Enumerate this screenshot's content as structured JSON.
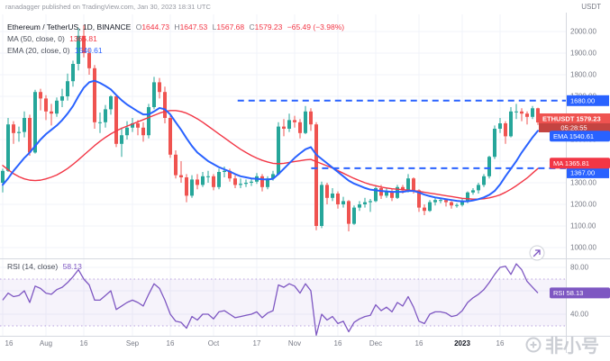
{
  "header": {
    "attribution": "ranadagger published on TradingView.com, Jan 30, 2023 18:31 UTC",
    "currency_label": "USDT"
  },
  "legend": {
    "symbol": "Ethereum / TetherUS, 1D, BINANCE",
    "ohlc": {
      "o_label": "O",
      "o": "1644.73",
      "h_label": "H",
      "h": "1647.53",
      "l_label": "L",
      "l": "1567.68",
      "c_label": "C",
      "c": "1579.23",
      "change": "−65.49 (−3.98%)"
    },
    "ma": {
      "label": "MA (50, close, 0)",
      "value": "1365.81"
    },
    "ema": {
      "label": "EMA (20, close, 0)",
      "value": "1540.61"
    },
    "rsi": {
      "label": "RSI (14, close)",
      "value": "58.13"
    }
  },
  "price_axis": {
    "y_ticks": [
      "2000.00",
      "1900.00",
      "1800.00",
      "1700.00",
      "1600.00",
      "1500.00",
      "1400.00",
      "1300.00",
      "1200.00",
      "1100.00",
      "1000.00"
    ],
    "last": {
      "symbol": "ETHUSDT",
      "price": "1579.23",
      "countdown": "05:28:55"
    },
    "ema_badge": {
      "label": "EMA",
      "value": "1540.61"
    },
    "ma_badge": {
      "label": "MA",
      "value": "1365.81"
    }
  },
  "rsi_axis": {
    "y_ticks": [
      "80.00",
      "60.00",
      "40.00"
    ],
    "badge": {
      "label": "RSI",
      "value": "58.13"
    }
  },
  "time_axis": {
    "labels": [
      {
        "t": "16",
        "i": 0
      },
      {
        "t": "Aug",
        "i": 8
      },
      {
        "t": "16",
        "i": 15
      },
      {
        "t": "Sep",
        "i": 24
      },
      {
        "t": "16",
        "i": 31
      },
      {
        "t": "Oct",
        "i": 39
      },
      {
        "t": "17",
        "i": 47
      },
      {
        "t": "Nov",
        "i": 54
      },
      {
        "t": "16",
        "i": 62
      },
      {
        "t": "Dec",
        "i": 69
      },
      {
        "t": "16",
        "i": 77
      },
      {
        "t": "2023",
        "i": 85,
        "bold": true
      },
      {
        "t": "16",
        "i": 92
      }
    ]
  },
  "watermark": {
    "text": "非小号"
  },
  "colors": {
    "up": "#26a69a",
    "down": "#ef5350",
    "ema": "#2962ff",
    "ma": "#f23645",
    "rsi": "#7e57c2",
    "level": "#2962ff",
    "axis_text": "#787b86",
    "grid": "#f0f3fa"
  },
  "chart_data": [
    {
      "type": "candlestick",
      "title": "Ethereum / TetherUS, 1D, BINANCE",
      "x_start": "2022-07-16",
      "x_step_days": 2,
      "ylim": [
        950,
        2060
      ],
      "y_ticks": [
        "2000.00",
        "1900.00",
        "1800.00",
        "1700.00",
        "1600.00",
        "1500.00",
        "1400.00",
        "1300.00",
        "1200.00",
        "1100.00",
        "1000.00"
      ],
      "candles": [
        [
          1300,
          1365,
          1255,
          1355
        ],
        [
          1355,
          1600,
          1350,
          1570
        ],
        [
          1570,
          1585,
          1480,
          1530
        ],
        [
          1530,
          1560,
          1490,
          1535
        ],
        [
          1535,
          1630,
          1510,
          1600
        ],
        [
          1600,
          1615,
          1425,
          1440
        ],
        [
          1440,
          1730,
          1435,
          1720
        ],
        [
          1720,
          1735,
          1635,
          1690
        ],
        [
          1690,
          1705,
          1590,
          1630
        ],
        [
          1630,
          1665,
          1565,
          1620
        ],
        [
          1620,
          1695,
          1605,
          1680
        ],
        [
          1680,
          1735,
          1650,
          1700
        ],
        [
          1700,
          1805,
          1680,
          1770
        ],
        [
          1770,
          1865,
          1745,
          1850
        ],
        [
          1850,
          2015,
          1820,
          1980
        ],
        [
          1980,
          2030,
          1880,
          1900
        ],
        [
          1900,
          1920,
          1800,
          1830
        ],
        [
          1830,
          1845,
          1550,
          1580
        ],
        [
          1580,
          1625,
          1530,
          1580
        ],
        [
          1580,
          1660,
          1555,
          1640
        ],
        [
          1640,
          1705,
          1615,
          1700
        ],
        [
          1700,
          1710,
          1465,
          1480
        ],
        [
          1480,
          1555,
          1420,
          1520
        ],
        [
          1520,
          1585,
          1500,
          1555
        ],
        [
          1555,
          1600,
          1535,
          1575
        ],
        [
          1575,
          1590,
          1520,
          1555
        ],
        [
          1555,
          1580,
          1490,
          1520
        ],
        [
          1520,
          1665,
          1505,
          1650
        ],
        [
          1650,
          1790,
          1640,
          1765
        ],
        [
          1765,
          1785,
          1690,
          1720
        ],
        [
          1720,
          1745,
          1575,
          1600
        ],
        [
          1600,
          1615,
          1415,
          1430
        ],
        [
          1430,
          1450,
          1320,
          1335
        ],
        [
          1335,
          1400,
          1300,
          1325
        ],
        [
          1325,
          1340,
          1210,
          1240
        ],
        [
          1240,
          1335,
          1230,
          1315
        ],
        [
          1315,
          1340,
          1270,
          1290
        ],
        [
          1290,
          1350,
          1280,
          1330
        ],
        [
          1330,
          1355,
          1300,
          1330
        ],
        [
          1330,
          1340,
          1265,
          1280
        ],
        [
          1280,
          1365,
          1270,
          1350
        ],
        [
          1350,
          1375,
          1325,
          1355
        ],
        [
          1355,
          1365,
          1305,
          1320
        ],
        [
          1320,
          1335,
          1275,
          1290
        ],
        [
          1290,
          1320,
          1275,
          1295
        ],
        [
          1295,
          1315,
          1280,
          1300
        ],
        [
          1300,
          1320,
          1285,
          1305
        ],
        [
          1305,
          1345,
          1295,
          1330
        ],
        [
          1330,
          1340,
          1260,
          1280
        ],
        [
          1280,
          1330,
          1270,
          1320
        ],
        [
          1320,
          1355,
          1310,
          1340
        ],
        [
          1340,
          1580,
          1335,
          1560
        ],
        [
          1560,
          1595,
          1515,
          1550
        ],
        [
          1550,
          1620,
          1535,
          1590
        ],
        [
          1590,
          1610,
          1555,
          1580
        ],
        [
          1580,
          1595,
          1505,
          1530
        ],
        [
          1530,
          1655,
          1525,
          1630
        ],
        [
          1630,
          1645,
          1540,
          1570
        ],
        [
          1570,
          1580,
          1080,
          1100
        ],
        [
          1100,
          1305,
          1090,
          1290
        ],
        [
          1290,
          1300,
          1200,
          1230
        ],
        [
          1230,
          1275,
          1215,
          1250
        ],
        [
          1250,
          1260,
          1180,
          1200
        ],
        [
          1200,
          1235,
          1185,
          1215
        ],
        [
          1215,
          1220,
          1075,
          1110
        ],
        [
          1110,
          1195,
          1105,
          1185
        ],
        [
          1185,
          1215,
          1170,
          1200
        ],
        [
          1200,
          1230,
          1185,
          1210
        ],
        [
          1210,
          1225,
          1165,
          1215
        ],
        [
          1215,
          1285,
          1210,
          1275
        ],
        [
          1275,
          1290,
          1225,
          1240
        ],
        [
          1240,
          1275,
          1230,
          1260
        ],
        [
          1260,
          1270,
          1215,
          1230
        ],
        [
          1230,
          1290,
          1225,
          1280
        ],
        [
          1280,
          1290,
          1250,
          1265
        ],
        [
          1265,
          1340,
          1255,
          1320
        ],
        [
          1320,
          1325,
          1250,
          1265
        ],
        [
          1265,
          1270,
          1165,
          1185
        ],
        [
          1185,
          1200,
          1150,
          1170
        ],
        [
          1170,
          1220,
          1165,
          1210
        ],
        [
          1210,
          1230,
          1195,
          1220
        ],
        [
          1220,
          1230,
          1205,
          1220
        ],
        [
          1220,
          1225,
          1190,
          1210
        ],
        [
          1210,
          1215,
          1180,
          1195
        ],
        [
          1195,
          1205,
          1185,
          1197
        ],
        [
          1197,
          1225,
          1190,
          1215
        ],
        [
          1215,
          1260,
          1205,
          1255
        ],
        [
          1255,
          1275,
          1245,
          1265
        ],
        [
          1265,
          1300,
          1250,
          1290
        ],
        [
          1290,
          1340,
          1280,
          1330
        ],
        [
          1330,
          1425,
          1320,
          1420
        ],
        [
          1420,
          1565,
          1410,
          1550
        ],
        [
          1550,
          1600,
          1530,
          1575
        ],
        [
          1575,
          1585,
          1480,
          1515
        ],
        [
          1515,
          1650,
          1510,
          1630
        ],
        [
          1630,
          1665,
          1595,
          1630
        ],
        [
          1630,
          1645,
          1585,
          1620
        ],
        [
          1620,
          1630,
          1570,
          1605
        ],
        [
          1605,
          1655,
          1595,
          1644.73
        ],
        [
          1644.73,
          1647.53,
          1567.68,
          1579.23
        ]
      ],
      "overlays": [
        {
          "id": "ma",
          "name": "MA (50, close, 0)",
          "color": "#f23645",
          "width": 1.4,
          "values": [
            1380,
            1360,
            1342,
            1328,
            1318,
            1312,
            1310,
            1312,
            1318,
            1326,
            1336,
            1350,
            1366,
            1385,
            1406,
            1428,
            1450,
            1472,
            1492,
            1510,
            1526,
            1540,
            1552,
            1562,
            1572,
            1582,
            1592,
            1602,
            1612,
            1622,
            1630,
            1634,
            1634,
            1630,
            1622,
            1610,
            1596,
            1580,
            1562,
            1544,
            1526,
            1508,
            1490,
            1472,
            1455,
            1440,
            1426,
            1414,
            1404,
            1396,
            1390,
            1388,
            1390,
            1394,
            1398,
            1402,
            1406,
            1408,
            1398,
            1388,
            1378,
            1368,
            1356,
            1344,
            1332,
            1320,
            1310,
            1300,
            1292,
            1286,
            1280,
            1276,
            1272,
            1270,
            1268,
            1266,
            1264,
            1260,
            1256,
            1252,
            1248,
            1244,
            1240,
            1236,
            1232,
            1228,
            1226,
            1224,
            1224,
            1226,
            1230,
            1236,
            1244,
            1256,
            1270,
            1286,
            1304,
            1322,
            1344,
            1365.81
          ]
        },
        {
          "id": "ema",
          "name": "EMA (20, close, 0)",
          "color": "#2962ff",
          "width": 2,
          "values": [
            1290,
            1320,
            1355,
            1385,
            1415,
            1440,
            1470,
            1500,
            1525,
            1545,
            1565,
            1590,
            1620,
            1655,
            1700,
            1740,
            1765,
            1772,
            1762,
            1748,
            1732,
            1706,
            1682,
            1662,
            1646,
            1630,
            1616,
            1616,
            1630,
            1646,
            1640,
            1616,
            1580,
            1545,
            1506,
            1470,
            1440,
            1420,
            1400,
            1386,
            1372,
            1362,
            1352,
            1340,
            1330,
            1325,
            1320,
            1318,
            1316,
            1315,
            1318,
            1340,
            1365,
            1390,
            1415,
            1436,
            1455,
            1465,
            1430,
            1410,
            1390,
            1370,
            1350,
            1330,
            1310,
            1296,
            1286,
            1276,
            1268,
            1265,
            1262,
            1260,
            1258,
            1258,
            1258,
            1262,
            1262,
            1255,
            1245,
            1238,
            1232,
            1228,
            1224,
            1220,
            1216,
            1214,
            1214,
            1218,
            1224,
            1232,
            1244,
            1262,
            1292,
            1330,
            1365,
            1400,
            1440,
            1475,
            1510,
            1540.61
          ]
        }
      ],
      "levels": [
        {
          "price": 1680,
          "label": "1680.00",
          "start": 0.42
        },
        {
          "price": 1367,
          "label": "1367.00",
          "start": 0.55
        }
      ],
      "last": {
        "price": 1579.23,
        "countdown": "05:28:55",
        "direction": "down"
      }
    },
    {
      "type": "line",
      "title": "RSI (14, close)",
      "color": "#7e57c2",
      "ylim": [
        20,
        90
      ],
      "y_ticks": [
        "80.00",
        "60.00",
        "40.00"
      ],
      "bands": [
        70,
        30
      ],
      "values": [
        52,
        58,
        55,
        56,
        60,
        50,
        64,
        62,
        58,
        57,
        61,
        63,
        67,
        72,
        78,
        70,
        65,
        52,
        52,
        56,
        60,
        44,
        47,
        50,
        52,
        50,
        47,
        57,
        66,
        62,
        52,
        40,
        34,
        33,
        28,
        38,
        35,
        40,
        40,
        36,
        42,
        43,
        40,
        37,
        38,
        39,
        40,
        42,
        37,
        41,
        43,
        65,
        63,
        66,
        64,
        58,
        66,
        60,
        22,
        40,
        35,
        38,
        32,
        34,
        25,
        33,
        36,
        38,
        39,
        48,
        43,
        46,
        42,
        50,
        47,
        55,
        46,
        34,
        32,
        40,
        42,
        42,
        41,
        38,
        39,
        43,
        50,
        54,
        57,
        61,
        67,
        74,
        80,
        81,
        74,
        83,
        78,
        68,
        63,
        58.13
      ],
      "last": 58.13
    }
  ]
}
